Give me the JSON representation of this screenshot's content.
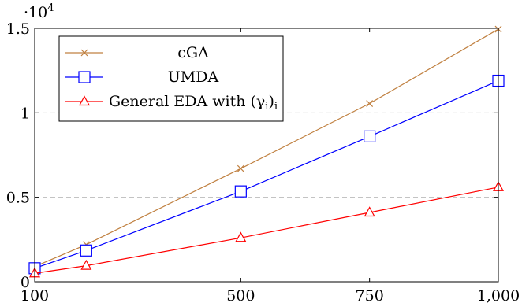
{
  "chart_data": {
    "type": "line",
    "title": "",
    "xlabel": "",
    "ylabel": "",
    "x_ticks": [
      "100",
      "500",
      "750",
      "1,000"
    ],
    "x_tick_values": [
      100,
      500,
      750,
      1000
    ],
    "y_ticks": [
      "0",
      "0.5",
      "1",
      "1.5"
    ],
    "y_tick_values": [
      0,
      0.5,
      1,
      1.5
    ],
    "y_multiplier": {
      "base": "·10",
      "exp": "4"
    },
    "xlim": [
      100,
      1000
    ],
    "ylim": [
      0,
      1.5
    ],
    "grid": "horizontal dashed",
    "legend_position": "top-left",
    "series": [
      {
        "name": "cGA",
        "color": "#C08040",
        "marker": "x",
        "x": [
          100,
          200,
          500,
          750,
          1000
        ],
        "y": [
          0.09,
          0.22,
          0.67,
          1.055,
          1.495
        ]
      },
      {
        "name": "UMDA",
        "color": "#0000FF",
        "marker": "square",
        "x": [
          100,
          200,
          500,
          750,
          1000
        ],
        "y": [
          0.08,
          0.185,
          0.535,
          0.86,
          1.19
        ]
      },
      {
        "name": "General EDA with (γi)i",
        "color": "#FF0000",
        "marker": "triangle",
        "x": [
          100,
          200,
          500,
          750,
          1000
        ],
        "y": [
          0.05,
          0.095,
          0.26,
          0.41,
          0.56
        ]
      }
    ]
  }
}
